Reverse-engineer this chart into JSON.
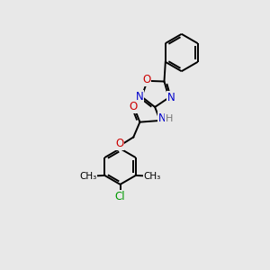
{
  "background_color": "#e8e8e8",
  "atom_colors": {
    "C": "#000000",
    "N": "#0000cc",
    "O": "#cc0000",
    "Cl": "#009900",
    "H": "#777777"
  },
  "bond_color": "#000000",
  "bond_width": 1.4,
  "xlim": [
    -2.5,
    3.0
  ],
  "ylim": [
    -4.2,
    3.2
  ]
}
